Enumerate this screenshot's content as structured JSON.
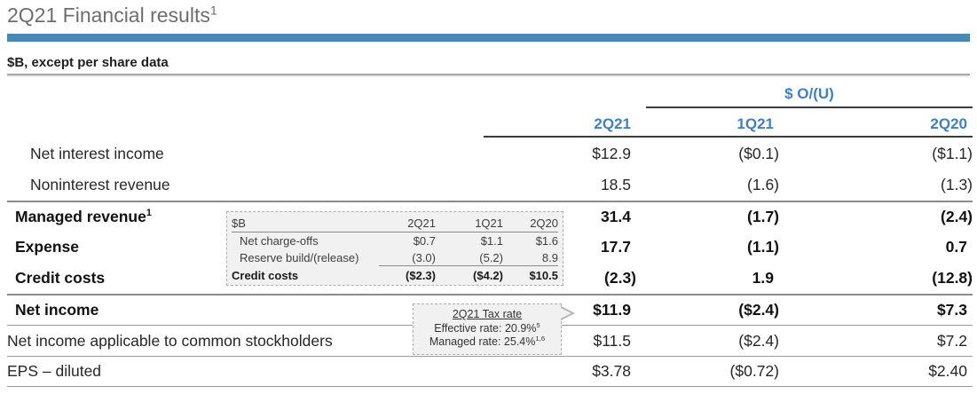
{
  "title": {
    "text": "2Q21 Financial results",
    "superscript": "1"
  },
  "subtitle": "$B, except per share data",
  "colors": {
    "accent_bar_blue": "#4a87b4",
    "header_text_blue": "#3e80c3",
    "title_gray": "#6c6d70",
    "rule_dark": "#3c3c3c",
    "rule_gray": "#8c8c8c",
    "inset_background": "#f1f1f1",
    "dashed_border": "#b0b0b0"
  },
  "table": {
    "group_header": "$ O/(U)",
    "columns": [
      "2Q21",
      "1Q21",
      "2Q20"
    ],
    "rows": [
      {
        "label": "Net interest income",
        "sup": "",
        "indent": 2,
        "bold": false,
        "rule_above": "none",
        "values": [
          "$12.9",
          "($0.1)",
          "($1.1)"
        ]
      },
      {
        "label": "Noninterest revenue",
        "sup": "",
        "indent": 2,
        "bold": false,
        "rule_above": "none",
        "values": [
          "18.5",
          "(1.6)",
          "(1.3)"
        ]
      },
      {
        "label": "Managed revenue",
        "sup": "1",
        "indent": 1,
        "bold": true,
        "rule_above": "strong",
        "values": [
          "31.4",
          "(1.7)",
          "(2.4)"
        ]
      },
      {
        "label": "Expense",
        "sup": "",
        "indent": 1,
        "bold": true,
        "rule_above": "none",
        "values": [
          "17.7",
          "(1.1)",
          "0.7"
        ]
      },
      {
        "label": "Credit costs",
        "sup": "",
        "indent": 1,
        "bold": true,
        "rule_above": "none",
        "values": [
          "(2.3)",
          "1.9",
          "(12.8)"
        ]
      },
      {
        "label": "Net income",
        "sup": "",
        "indent": 1,
        "bold": true,
        "rule_above": "strong",
        "values": [
          "$11.9",
          "($2.4)",
          "$7.3"
        ]
      },
      {
        "label": "Net income applicable to common stockholders",
        "sup": "",
        "indent": 0,
        "bold": false,
        "rule_above": "light",
        "values": [
          "$11.5",
          "($2.4)",
          "$7.2"
        ]
      },
      {
        "label": "EPS – diluted",
        "sup": "",
        "indent": 0,
        "bold": false,
        "rule_above": "light",
        "values": [
          "$3.78",
          "($0.72)",
          "$2.40"
        ]
      }
    ]
  },
  "inset_table": {
    "unit_label": "$B",
    "columns": [
      "2Q21",
      "1Q21",
      "2Q20"
    ],
    "rows": [
      {
        "label": "Net charge-offs",
        "bold": false,
        "underline_values": false,
        "values": [
          "$0.7",
          "$1.1",
          "$1.6"
        ]
      },
      {
        "label": "Reserve build/(release)",
        "bold": false,
        "underline_values": true,
        "values": [
          "(3.0)",
          "(5.2)",
          "8.9"
        ]
      },
      {
        "label": "Credit costs",
        "bold": true,
        "underline_values": false,
        "values": [
          "($2.3)",
          "($4.2)",
          "$10.5"
        ]
      }
    ]
  },
  "tax_callout": {
    "title": "2Q21 Tax rate",
    "lines": [
      {
        "text": "Effective rate: 20.9%",
        "sup": "5"
      },
      {
        "text": "Managed rate: 25.4%",
        "sup": "1,6"
      }
    ]
  }
}
